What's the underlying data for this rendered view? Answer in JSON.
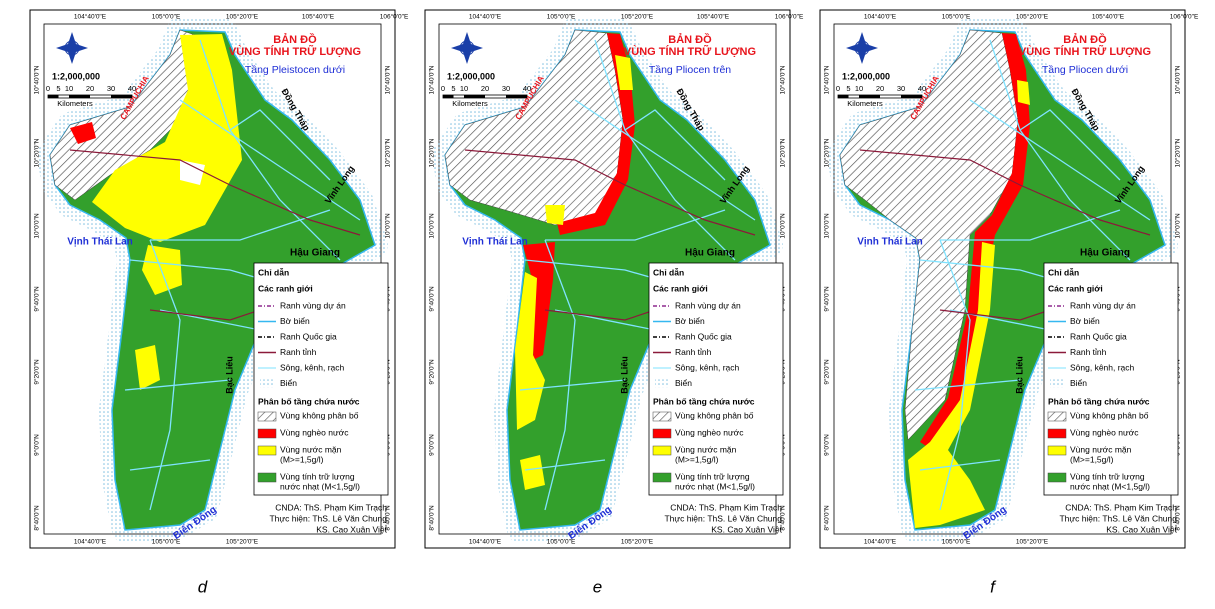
{
  "common": {
    "title_lines": [
      "BẢN ĐỒ",
      "VÙNG TÍNH TRỮ LƯỢNG"
    ],
    "scale": "1:2,000,000",
    "scale_numbers": [
      0,
      5,
      10,
      20,
      30,
      40
    ],
    "scale_unit": "Kilometers",
    "places": [
      "CAMPUCHIA",
      "Đồng Tháp",
      "Vĩnh Long",
      "Vịnh Thái Lan",
      "Hậu Giang",
      "Bạc Liêu",
      "Biển Đông"
    ],
    "lon_top": [
      "104°40'0\"E",
      "105°0'0\"E",
      "105°20'0\"E",
      "105°40'0\"E",
      "106°0'0\"E"
    ],
    "lon_bottom": [
      "104°40'0\"E",
      "105°0'0\"E",
      "105°20'0\"E"
    ],
    "lat": [
      "10°40'0\"N",
      "10°20'0\"N",
      "10°0'0\"N",
      "9°40'0\"N",
      "9°20'0\"N",
      "9°0'0\"N",
      "8°40'0\"N"
    ],
    "legend": {
      "title": "Chỉ dẫn",
      "boundaries_title": "Các ranh giới",
      "boundaries": [
        {
          "label": "Ranh vùng dự án",
          "color": "#8e2a8e"
        },
        {
          "label": "Bờ biển",
          "color": "#35b8f0"
        },
        {
          "label": "Ranh Quốc gia",
          "color": "#000000"
        },
        {
          "label": "Ranh tỉnh",
          "color": "#8b1a3a"
        },
        {
          "label": "Sông, kênh, rạch",
          "color": "#7fe3ff"
        },
        {
          "label": "Biển",
          "color": "#9fd4ee"
        }
      ],
      "aquifer_title": "Phân bố tầng chứa nước",
      "aquifer": [
        {
          "label": [
            "Vùng không phân bố"
          ],
          "color": "#ffffff"
        },
        {
          "label": [
            "Vùng nghèo nước"
          ],
          "color": "#ff0000"
        },
        {
          "label": [
            "Vùng nước mặn",
            "(M>=1,5g/l)"
          ],
          "color": "#ffff00"
        },
        {
          "label": [
            "Vùng tính trữ lượng",
            "nước nhạt (M<1,5g/l)"
          ],
          "color": "#33a02c"
        }
      ]
    },
    "credits": [
      "CNDA: ThS. Phạm Kim Trạch",
      "Thực hiện: ThS. Lê Văn Chung",
      "KS. Cao Xuân Việt"
    ]
  },
  "panels": [
    {
      "subtitle": "Tầng Pleistocen dưới",
      "caption": "d"
    },
    {
      "subtitle": "Tầng Pliocen trên",
      "caption": "e"
    },
    {
      "subtitle": "Tầng Pliocen dưới",
      "caption": "f"
    }
  ]
}
